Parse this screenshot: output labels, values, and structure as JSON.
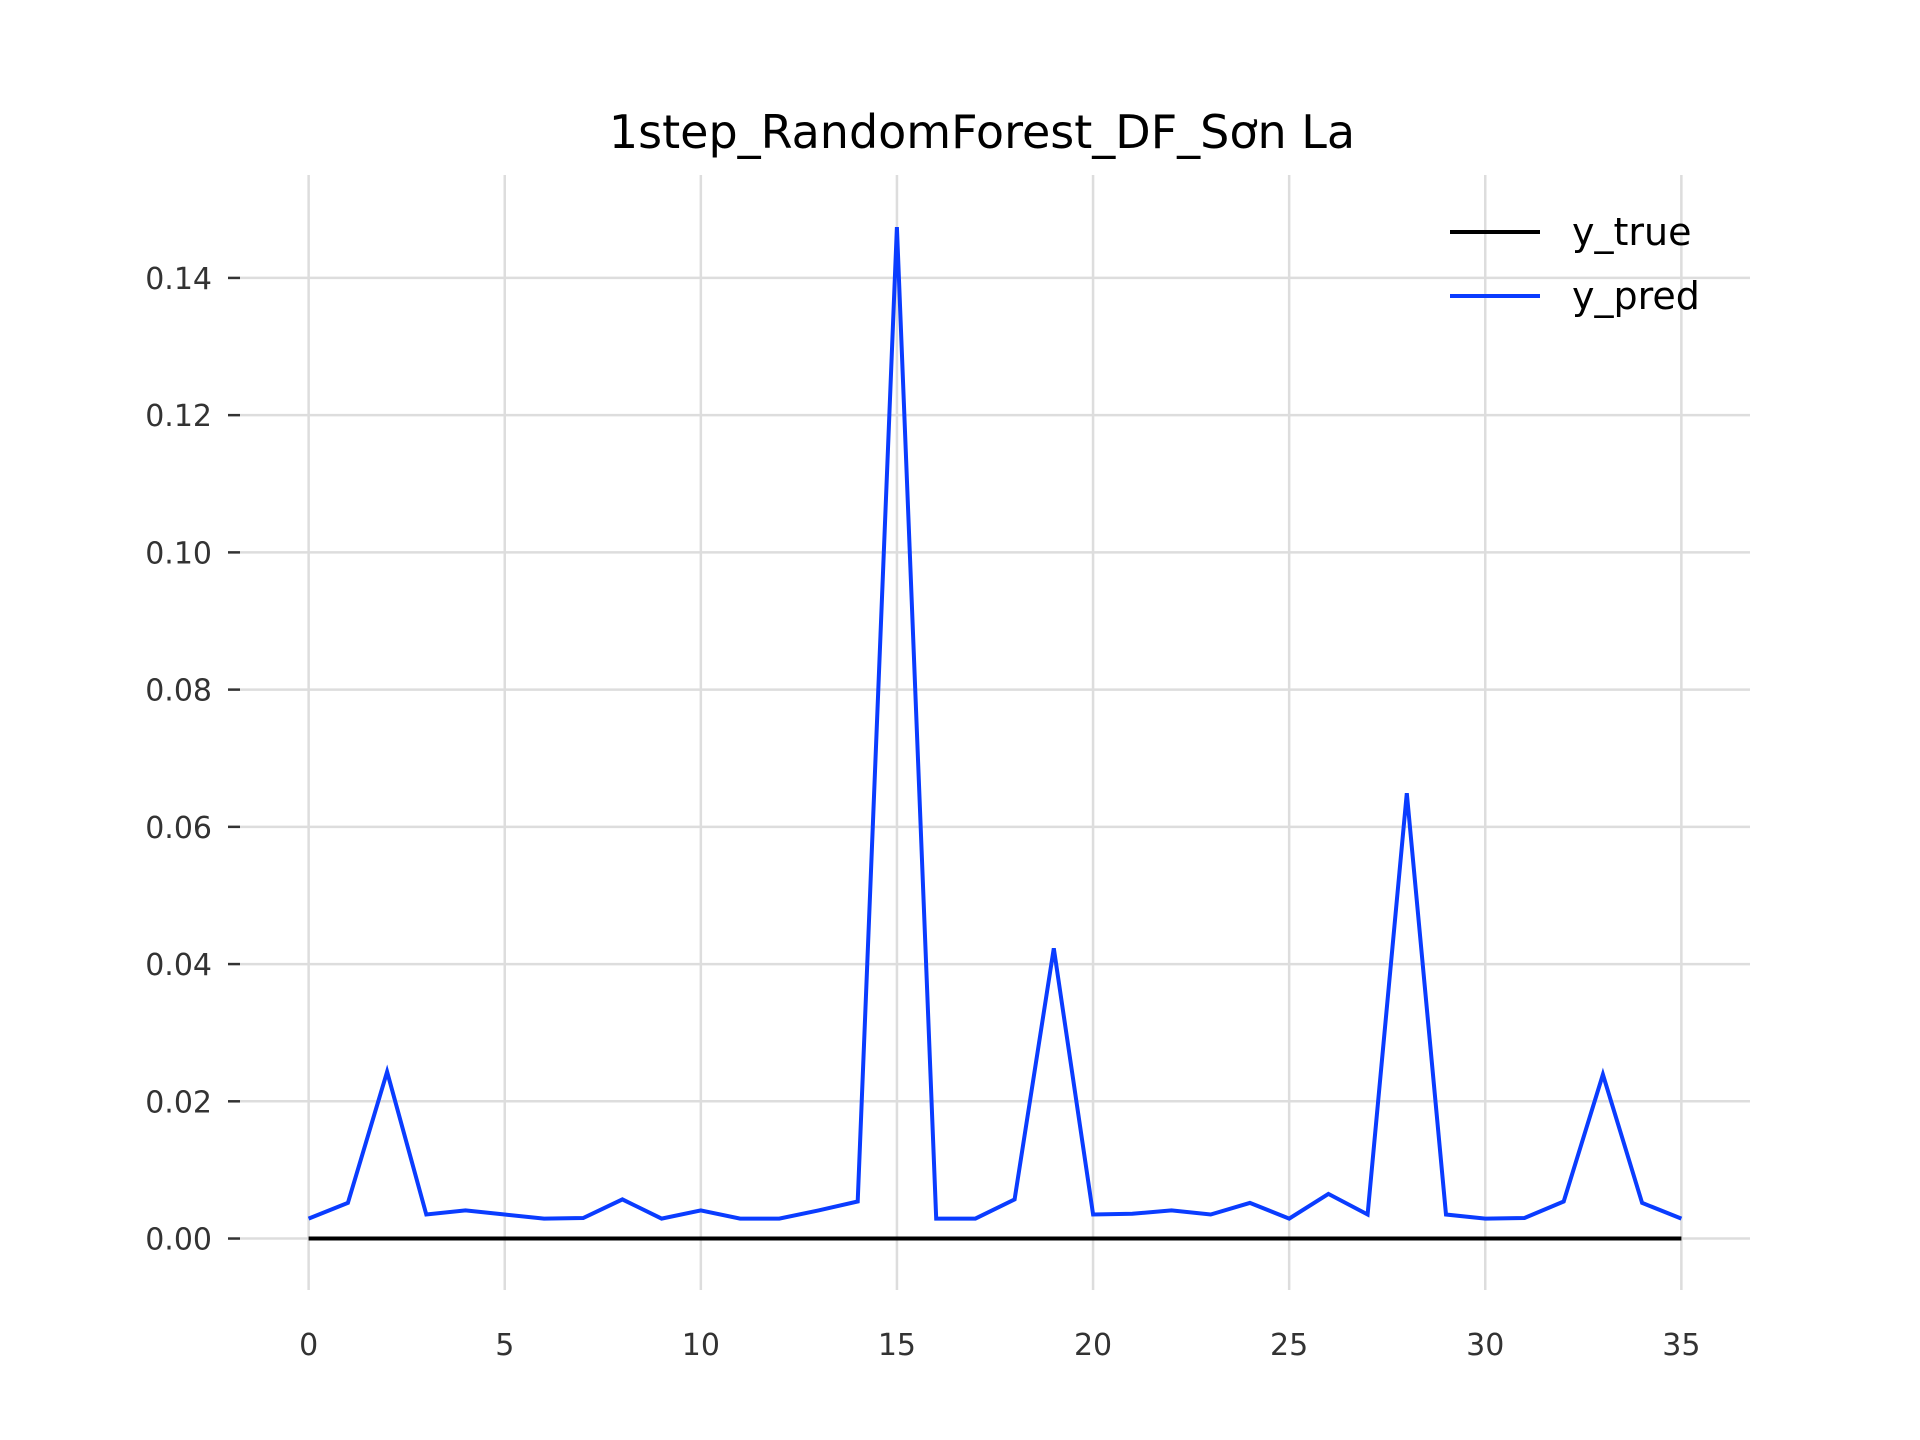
{
  "chart_data": {
    "type": "line",
    "title": "1step_RandomForest_DF_Sơn La",
    "xlabel": "",
    "ylabel": "",
    "xlim": [
      -1.75,
      36.75
    ],
    "ylim": [
      -0.0075,
      0.155
    ],
    "xticks": [
      0,
      5,
      10,
      15,
      20,
      25,
      30,
      35
    ],
    "xtick_labels": [
      "0",
      "5",
      "10",
      "15",
      "20",
      "25",
      "30",
      "35"
    ],
    "yticks": [
      0.0,
      0.02,
      0.04,
      0.06,
      0.08,
      0.1,
      0.12,
      0.14
    ],
    "ytick_labels": [
      "0.00",
      "0.02",
      "0.04",
      "0.06",
      "0.08",
      "0.10",
      "0.12",
      "0.14"
    ],
    "grid": true,
    "legend_position": "top-right",
    "x": [
      0,
      1,
      2,
      3,
      4,
      5,
      6,
      7,
      8,
      9,
      10,
      11,
      12,
      13,
      14,
      15,
      16,
      17,
      18,
      19,
      20,
      21,
      22,
      23,
      24,
      25,
      26,
      27,
      28,
      29,
      30,
      31,
      32,
      33,
      34,
      35
    ],
    "series": [
      {
        "name": "y_true",
        "color": "#000000",
        "values": [
          0,
          0,
          0,
          0,
          0,
          0,
          0,
          0,
          0,
          0,
          0,
          0,
          0,
          0,
          0,
          0,
          0,
          0,
          0,
          0,
          0,
          0,
          0,
          0,
          0,
          0,
          0,
          0,
          0,
          0,
          0,
          0,
          0,
          0,
          0,
          0
        ]
      },
      {
        "name": "y_pred",
        "color": "#0a3cff",
        "values": [
          0.0029,
          0.0052,
          0.0243,
          0.0035,
          0.0041,
          0.0035,
          0.0029,
          0.003,
          0.0057,
          0.0029,
          0.0041,
          0.0029,
          0.0029,
          0.0041,
          0.0054,
          0.1474,
          0.0029,
          0.0029,
          0.0057,
          0.0423,
          0.0035,
          0.0036,
          0.0041,
          0.0035,
          0.0052,
          0.0029,
          0.0065,
          0.0035,
          0.0649,
          0.0035,
          0.0029,
          0.003,
          0.0054,
          0.0239,
          0.0052,
          0.0029
        ]
      }
    ]
  }
}
